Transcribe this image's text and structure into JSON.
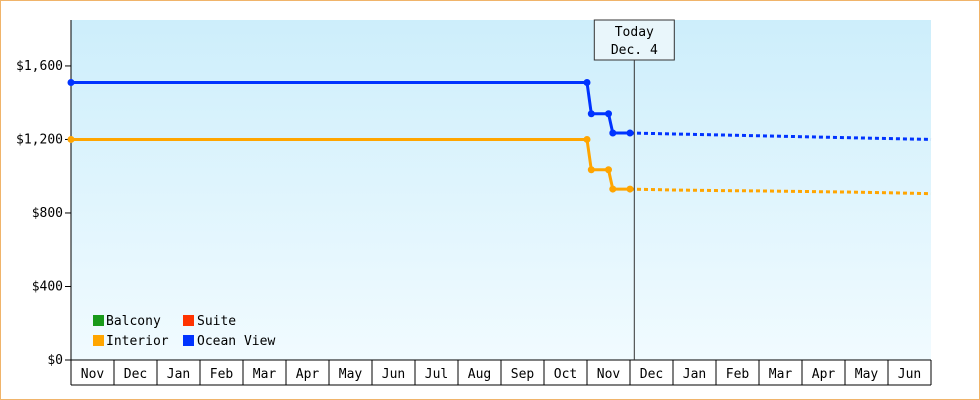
{
  "colors": {
    "balcony": "#1a9a1a",
    "suite": "#ff3300",
    "interior": "#ffa500",
    "ocean_view": "#0033ff",
    "plot_bg_top": "#cdeefb",
    "plot_bg_bottom": "#f1fbff",
    "frame": "#f0b46a"
  },
  "chart_data": {
    "type": "line",
    "title": "",
    "xlabel": "",
    "ylabel": "",
    "ylim": [
      0,
      1850
    ],
    "y_ticks": [
      {
        "value": 0,
        "label": "$0"
      },
      {
        "value": 400,
        "label": "$400"
      },
      {
        "value": 800,
        "label": "$800"
      },
      {
        "value": 1200,
        "label": "$1,200"
      },
      {
        "value": 1600,
        "label": "$1,600"
      }
    ],
    "months": [
      "Nov",
      "Dec",
      "Jan",
      "Feb",
      "Mar",
      "Apr",
      "May",
      "Jun",
      "Jul",
      "Aug",
      "Sep",
      "Oct",
      "Nov",
      "Dec",
      "Jan",
      "Feb",
      "Mar",
      "Apr",
      "May",
      "Jun"
    ],
    "today": {
      "label_line1": "Today",
      "label_line2": "Dec. 4",
      "month_index": 13.1
    },
    "legend_position": "bottom-left",
    "grid": false,
    "series": [
      {
        "name": "Ocean View",
        "color_key": "ocean_view",
        "history": [
          {
            "x": 0,
            "y": 1510
          },
          {
            "x": 12,
            "y": 1510
          },
          {
            "x": 12.1,
            "y": 1340
          },
          {
            "x": 12.5,
            "y": 1340
          },
          {
            "x": 12.6,
            "y": 1235
          },
          {
            "x": 13.0,
            "y": 1235
          }
        ],
        "forecast": [
          {
            "x": 13.0,
            "y": 1235
          },
          {
            "x": 14,
            "y": 1230
          },
          {
            "x": 15,
            "y": 1225
          },
          {
            "x": 16,
            "y": 1220
          },
          {
            "x": 17,
            "y": 1215
          },
          {
            "x": 18,
            "y": 1210
          },
          {
            "x": 19,
            "y": 1205
          },
          {
            "x": 20,
            "y": 1200
          }
        ]
      },
      {
        "name": "Interior",
        "color_key": "interior",
        "history": [
          {
            "x": 0,
            "y": 1200
          },
          {
            "x": 12,
            "y": 1200
          },
          {
            "x": 12.1,
            "y": 1035
          },
          {
            "x": 12.5,
            "y": 1035
          },
          {
            "x": 12.6,
            "y": 930
          },
          {
            "x": 13.0,
            "y": 930
          }
        ],
        "forecast": [
          {
            "x": 13.0,
            "y": 930
          },
          {
            "x": 14,
            "y": 925
          },
          {
            "x": 15,
            "y": 922
          },
          {
            "x": 16,
            "y": 920
          },
          {
            "x": 17,
            "y": 917
          },
          {
            "x": 18,
            "y": 914
          },
          {
            "x": 19,
            "y": 910
          },
          {
            "x": 20,
            "y": 905
          }
        ]
      }
    ],
    "legend": [
      {
        "name": "Balcony",
        "color_key": "balcony"
      },
      {
        "name": "Suite",
        "color_key": "suite"
      },
      {
        "name": "Interior",
        "color_key": "interior"
      },
      {
        "name": "Ocean View",
        "color_key": "ocean_view"
      }
    ]
  }
}
